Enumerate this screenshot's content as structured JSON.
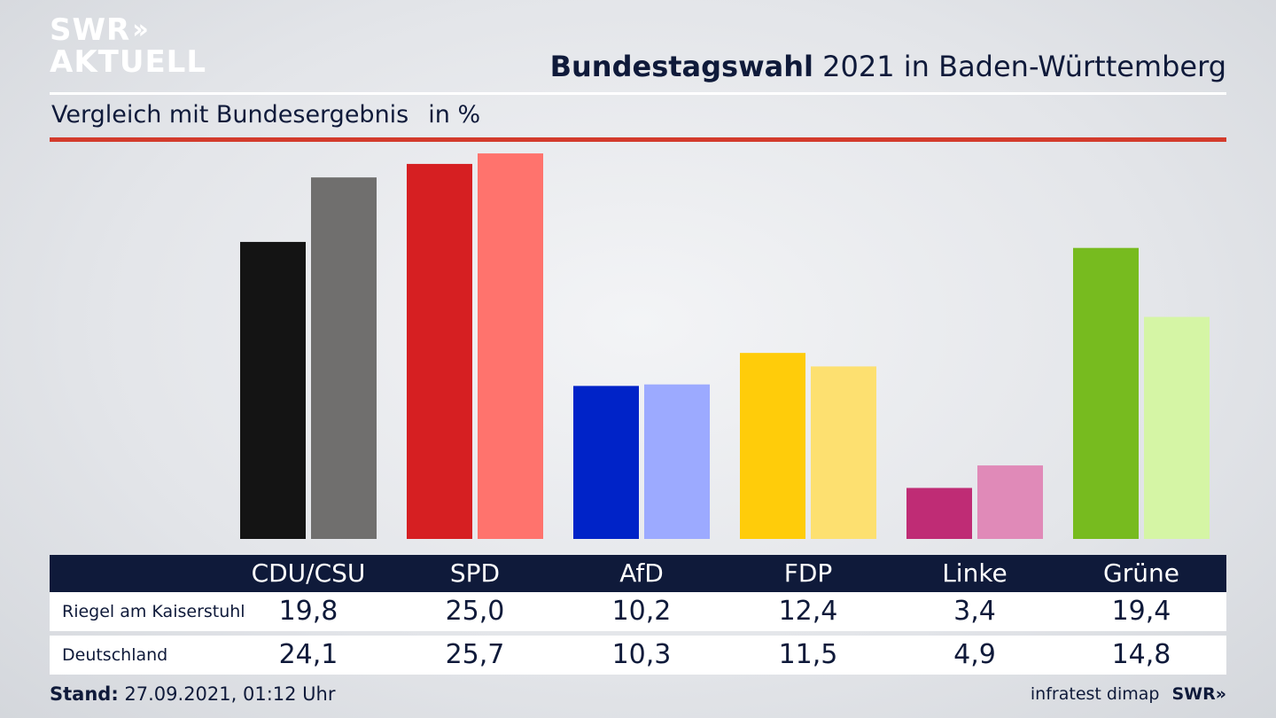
{
  "logo": {
    "line1": "SWR",
    "line2": "AKTUELL"
  },
  "header": {
    "title_bold": "Bundestagswahl",
    "title_rest": " 2021 in Baden-Württemberg",
    "subtitle": "Vergleich mit Bundesergebnis",
    "unit": "in %"
  },
  "colors": {
    "navy": "#0f1a3a",
    "accent_red": "#d33b2c"
  },
  "chart_data": {
    "type": "bar",
    "title": "Bundestagswahl 2021 in Baden-Württemberg",
    "subtitle": "Vergleich mit Bundesergebnis in %",
    "categories": [
      "CDU/CSU",
      "SPD",
      "AfD",
      "FDP",
      "Linke",
      "Grüne"
    ],
    "series": [
      {
        "name": "Riegel am Kaiserstuhl",
        "values": [
          19.8,
          25.0,
          10.2,
          12.4,
          3.4,
          19.4
        ]
      },
      {
        "name": "Deutschland",
        "values": [
          24.1,
          25.7,
          10.3,
          11.5,
          4.9,
          14.8
        ]
      }
    ],
    "colors": {
      "primary": [
        "#141414",
        "#d61f22",
        "#0023c8",
        "#ffcc0a",
        "#bf2c75",
        "#77bb1f"
      ],
      "secondary": [
        "#706f6e",
        "#ff736d",
        "#9caaff",
        "#fde070",
        "#e08ab8",
        "#d5f5a5"
      ]
    },
    "ylim": [
      0,
      26
    ]
  },
  "table": {
    "headers": [
      "CDU/CSU",
      "SPD",
      "AfD",
      "FDP",
      "Linke",
      "Grüne"
    ],
    "rows": [
      {
        "label": "Riegel am Kaiserstuhl",
        "values": [
          "19,8",
          "25,0",
          "10,2",
          "12,4",
          "3,4",
          "19,4"
        ]
      },
      {
        "label": "Deutschland",
        "values": [
          "24,1",
          "25,7",
          "10,3",
          "11,5",
          "4,9",
          "14,8"
        ]
      }
    ]
  },
  "footer": {
    "stand_label": "Stand:",
    "stand_value": " 27.09.2021, 01:12 Uhr",
    "source": "infratest dimap",
    "brand": "SWR»"
  }
}
